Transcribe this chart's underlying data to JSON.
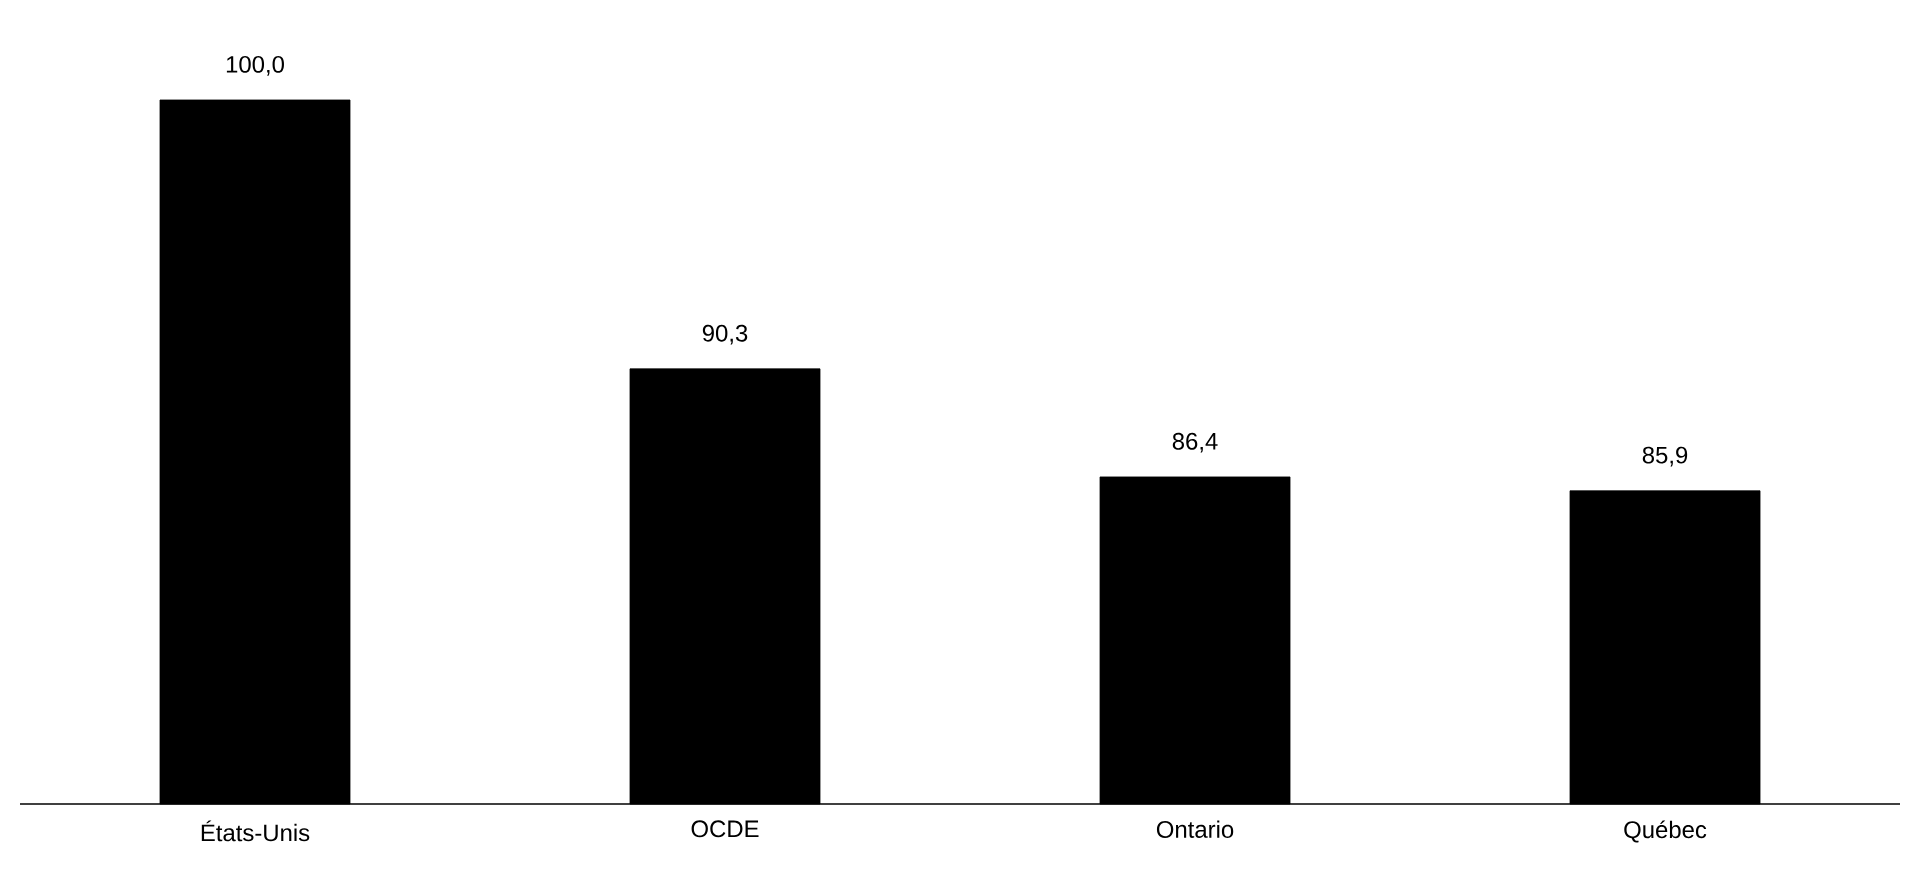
{
  "chart_data": {
    "type": "bar",
    "categories": [
      "États-Unis",
      "OCDE",
      "Ontario",
      "Québec"
    ],
    "values": [
      100.0,
      90.3,
      86.4,
      85.9
    ],
    "value_labels": [
      "100,0",
      "90,3",
      "86,4",
      "85,9"
    ],
    "color": "#000000",
    "ylim": [
      74.6,
      100
    ],
    "grid": false
  }
}
